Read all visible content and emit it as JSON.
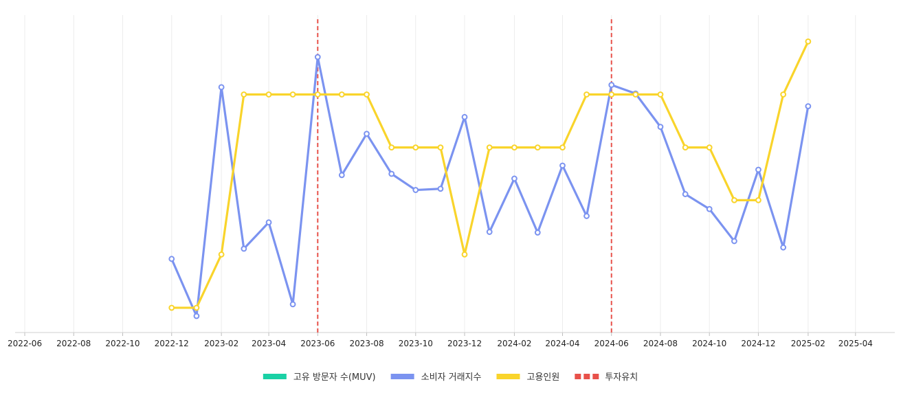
{
  "chart_data": {
    "type": "line",
    "title": "",
    "xlabel": "",
    "ylabel": "",
    "grid": {
      "vertical": true,
      "horizontal": false
    },
    "legend_placement": "bottom-center",
    "x_range": [
      "2022-05-20",
      "2025-05-20"
    ],
    "x_ticks": [
      "2022-06",
      "2022-08",
      "2022-10",
      "2022-12",
      "2023-02",
      "2023-04",
      "2023-06",
      "2023-08",
      "2023-10",
      "2023-12",
      "2024-02",
      "2024-04",
      "2024-06",
      "2024-08",
      "2024-10",
      "2024-12",
      "2025-02",
      "2025-04"
    ],
    "y_range": [
      0,
      100
    ],
    "series": [
      {
        "name": "고유 방문자 수(MUV)",
        "color": "#1ad1a5",
        "points": []
      },
      {
        "name": "소비자 거래지수",
        "color": "#7b93f0",
        "points": [
          [
            "2022-12",
            23.2
          ],
          [
            "2023-01",
            5.2
          ],
          [
            "2023-02",
            77.3
          ],
          [
            "2023-03",
            26.4
          ],
          [
            "2023-04",
            34.7
          ],
          [
            "2023-05",
            8.9
          ],
          [
            "2023-06",
            86.8
          ],
          [
            "2023-07",
            49.6
          ],
          [
            "2023-08",
            62.6
          ],
          [
            "2023-09",
            50.0
          ],
          [
            "2023-10",
            44.9
          ],
          [
            "2023-11",
            45.3
          ],
          [
            "2023-12",
            67.9
          ],
          [
            "2024-01",
            31.7
          ],
          [
            "2024-02",
            48.5
          ],
          [
            "2024-03",
            31.5
          ],
          [
            "2024-04",
            52.6
          ],
          [
            "2024-05",
            36.7
          ],
          [
            "2024-06",
            78.0
          ],
          [
            "2024-07",
            75.3
          ],
          [
            "2024-08",
            64.8
          ],
          [
            "2024-09",
            43.6
          ],
          [
            "2024-10",
            38.9
          ],
          [
            "2024-11",
            28.8
          ],
          [
            "2024-12",
            51.3
          ],
          [
            "2025-01",
            26.8
          ],
          [
            "2025-02",
            71.3
          ]
        ]
      },
      {
        "name": "고용인원",
        "color": "#f9d42b",
        "points": [
          [
            "2022-12",
            7.8
          ],
          [
            "2023-01",
            7.8
          ],
          [
            "2023-02",
            24.6
          ],
          [
            "2023-03",
            75.0
          ],
          [
            "2023-04",
            75.0
          ],
          [
            "2023-05",
            75.0
          ],
          [
            "2023-06",
            75.0
          ],
          [
            "2023-07",
            75.0
          ],
          [
            "2023-08",
            75.0
          ],
          [
            "2023-09",
            58.3
          ],
          [
            "2023-10",
            58.3
          ],
          [
            "2023-11",
            58.3
          ],
          [
            "2023-12",
            24.6
          ],
          [
            "2024-01",
            58.3
          ],
          [
            "2024-02",
            58.3
          ],
          [
            "2024-03",
            58.3
          ],
          [
            "2024-04",
            58.3
          ],
          [
            "2024-05",
            75.0
          ],
          [
            "2024-06",
            75.0
          ],
          [
            "2024-07",
            75.0
          ],
          [
            "2024-08",
            75.0
          ],
          [
            "2024-09",
            58.3
          ],
          [
            "2024-10",
            58.3
          ],
          [
            "2024-11",
            41.7
          ],
          [
            "2024-12",
            41.7
          ],
          [
            "2025-01",
            75.0
          ],
          [
            "2025-02",
            91.7
          ]
        ]
      }
    ],
    "events": {
      "name": "투자유치",
      "color": "#e8514a",
      "dates": [
        "2023-06",
        "2024-06"
      ]
    }
  }
}
